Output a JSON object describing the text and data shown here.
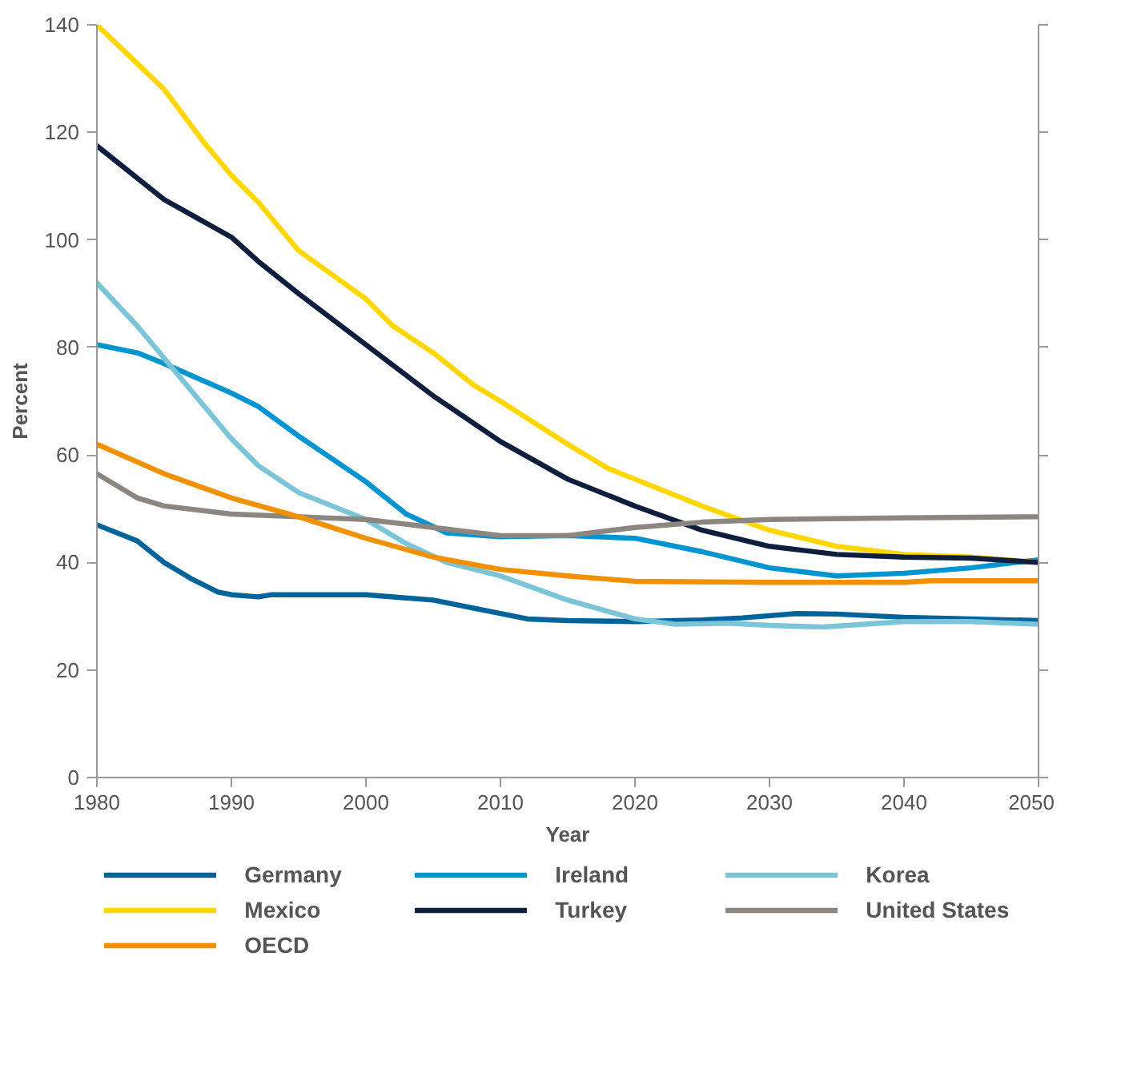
{
  "chart_data": {
    "type": "line",
    "xlabel": "Year",
    "ylabel": "Percent",
    "xlim": [
      1980,
      2050
    ],
    "ylim": [
      0,
      140
    ],
    "xticks": [
      1980,
      1990,
      2000,
      2010,
      2020,
      2030,
      2040,
      2050
    ],
    "yticks": [
      0,
      20,
      40,
      60,
      80,
      100,
      120,
      140
    ],
    "grid": false,
    "legend": "bottom",
    "marker": "none",
    "line_style": "solid",
    "series": [
      {
        "name": "Germany",
        "color": "#00649b",
        "x": [
          1980,
          1983,
          1985,
          1987,
          1989,
          1990,
          1992,
          1993,
          2000,
          2005,
          2010,
          2012,
          2015,
          2020,
          2025,
          2028,
          2032,
          2035,
          2040,
          2045,
          2050
        ],
        "values": [
          47,
          44,
          40,
          37,
          34.5,
          34,
          33.6,
          34,
          34,
          33,
          30.5,
          29.5,
          29.2,
          29,
          29.3,
          29.7,
          30.5,
          30.4,
          29.8,
          29.5,
          29.2
        ]
      },
      {
        "name": "Ireland",
        "color": "#0094d0",
        "x": [
          1980,
          1983,
          1985,
          1990,
          1992,
          1995,
          2000,
          2003,
          2006,
          2010,
          2015,
          2020,
          2022,
          2025,
          2030,
          2035,
          2040,
          2045,
          2050
        ],
        "values": [
          80.5,
          79,
          77,
          71.5,
          69,
          63.5,
          55,
          49,
          45.5,
          44.8,
          45,
          44.5,
          43.5,
          42,
          39,
          37.5,
          38,
          39,
          40.5
        ]
      },
      {
        "name": "Korea",
        "color": "#7cc5d9",
        "x": [
          1980,
          1983,
          1985,
          1988,
          1990,
          1992,
          1995,
          2000,
          2003,
          2006,
          2010,
          2015,
          2020,
          2023,
          2027,
          2030,
          2034,
          2040,
          2045,
          2050
        ],
        "values": [
          92,
          84,
          78,
          69,
          63,
          58,
          53,
          48,
          43.5,
          40,
          37.5,
          33,
          29.5,
          28.5,
          28.7,
          28.3,
          28,
          29,
          29,
          28.5
        ]
      },
      {
        "name": "Mexico",
        "color": "#ffd700",
        "x": [
          1980,
          1985,
          1988,
          1990,
          1992,
          1995,
          2000,
          2002,
          2005,
          2008,
          2010,
          2015,
          2018,
          2020,
          2025,
          2030,
          2035,
          2040,
          2045,
          2050
        ],
        "values": [
          140,
          128,
          118,
          112,
          107,
          98,
          89,
          84,
          79,
          73,
          70,
          62,
          57.5,
          55.5,
          50.5,
          46,
          43,
          41.5,
          41,
          40
        ]
      },
      {
        "name": "Turkey",
        "color": "#0f1e3d",
        "x": [
          1980,
          1985,
          1990,
          1992,
          1995,
          2000,
          2005,
          2010,
          2015,
          2020,
          2025,
          2030,
          2035,
          2040,
          2045,
          2050
        ],
        "values": [
          117.5,
          107.5,
          100.5,
          96,
          90,
          80.5,
          71,
          62.5,
          55.5,
          50.5,
          46,
          43,
          41.5,
          41,
          40.8,
          40
        ]
      },
      {
        "name": "United States",
        "color": "#8c8680",
        "x": [
          1980,
          1983,
          1985,
          1990,
          1995,
          2000,
          2005,
          2010,
          2015,
          2020,
          2025,
          2030,
          2040,
          2050
        ],
        "values": [
          56.5,
          52,
          50.5,
          49,
          48.5,
          48,
          46.5,
          45,
          45,
          46.5,
          47.5,
          48,
          48.3,
          48.5
        ]
      },
      {
        "name": "OECD",
        "color": "#f29100",
        "x": [
          1980,
          1985,
          1990,
          1995,
          2000,
          2005,
          2010,
          2015,
          2020,
          2030,
          2040,
          2042,
          2050
        ],
        "values": [
          62,
          56.5,
          52,
          48.5,
          44.5,
          41,
          38.7,
          37.5,
          36.5,
          36.3,
          36.3,
          36.6,
          36.6
        ]
      }
    ]
  }
}
